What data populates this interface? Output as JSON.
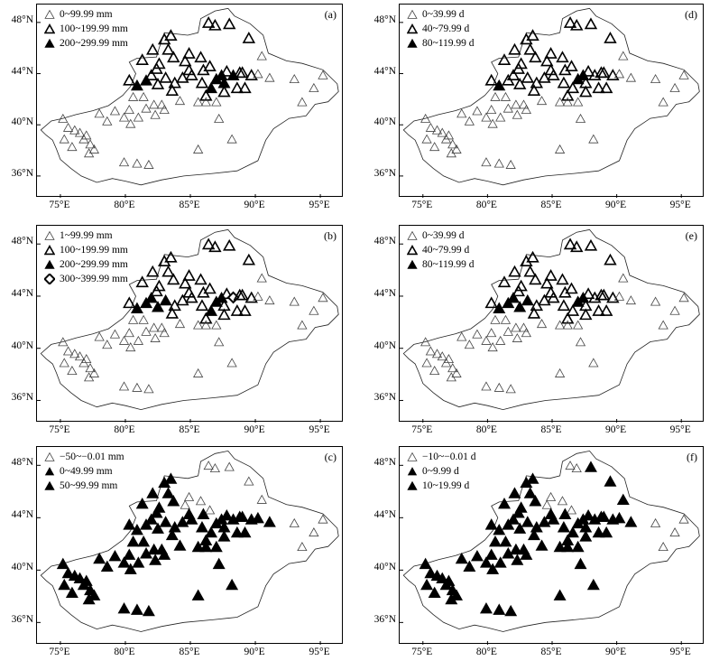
{
  "x_ticks": [
    "75°E",
    "80°E",
    "85°E",
    "90°E",
    "95°E"
  ],
  "y_ticks": [
    "48°N",
    "44°N",
    "40°N",
    "36°N"
  ],
  "symbols": {
    "small-open": {
      "fill": "none",
      "stroke": "#444444"
    },
    "med-open": {
      "fill": "none",
      "stroke": "#000000"
    },
    "filled": {
      "fill": "#000000",
      "stroke": "#000000"
    },
    "diamond": {
      "fill": "#ffffff",
      "stroke": "#000000"
    }
  },
  "panels": [
    {
      "label": "(a)",
      "legend": [
        {
          "text": "0~99.99 mm",
          "symbol": "small-open"
        },
        {
          "text": "100~199.99 mm",
          "symbol": "med-open"
        },
        {
          "text": "200~299.99 mm",
          "symbol": "filled"
        }
      ]
    },
    {
      "label": "(d)",
      "legend": [
        {
          "text": "0~39.99 d",
          "symbol": "small-open"
        },
        {
          "text": "40~79.99 d",
          "symbol": "med-open"
        },
        {
          "text": "80~119.99 d",
          "symbol": "filled"
        }
      ]
    },
    {
      "label": "(b)",
      "legend": [
        {
          "text": "1~99.99 mm",
          "symbol": "small-open"
        },
        {
          "text": "100~199.99 mm",
          "symbol": "med-open"
        },
        {
          "text": "200~299.99 mm",
          "symbol": "filled"
        },
        {
          "text": "300~399.99 mm",
          "symbol": "diamond"
        }
      ]
    },
    {
      "label": "(e)",
      "legend": [
        {
          "text": "0~39.99 d",
          "symbol": "small-open"
        },
        {
          "text": "40~79.99 d",
          "symbol": "med-open"
        },
        {
          "text": "80~119.99 d",
          "symbol": "filled"
        }
      ]
    },
    {
      "label": "(c)",
      "legend": [
        {
          "text": "−50~−0.01 mm",
          "symbol": "small-open"
        },
        {
          "text": "0~49.99 mm",
          "symbol": "filled"
        },
        {
          "text": "50~99.99 mm",
          "symbol": "filled"
        }
      ]
    },
    {
      "label": "(f)",
      "legend": [
        {
          "text": "−10~−0.01 d",
          "symbol": "small-open"
        },
        {
          "text": "0~9.99 d",
          "symbol": "filled"
        },
        {
          "text": "10~19.99 d",
          "symbol": "filled"
        }
      ]
    }
  ]
}
